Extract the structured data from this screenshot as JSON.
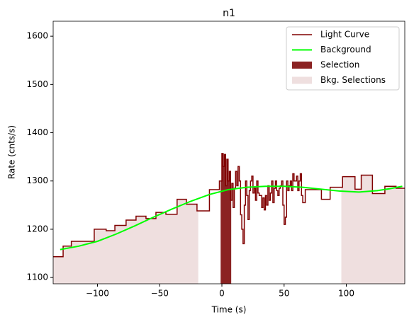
{
  "chart_data": {
    "type": "step",
    "title": "n1",
    "x_label": "Time (s)",
    "y_label": "Rate (cnts/s)",
    "xlim": [
      -135.6,
      147
    ],
    "ylim": [
      1087,
      1631
    ],
    "xticks": [
      {
        "value": -100,
        "label": "−100"
      },
      {
        "value": -50,
        "label": "−50"
      },
      0,
      50,
      100
    ],
    "yticks": [
      1100,
      1200,
      1300,
      1400,
      1500,
      1600
    ],
    "legend": "upper right",
    "series": [
      {
        "name": "Light Curve",
        "color": "#800000",
        "x": [
          -135.6,
          -127.6,
          -121,
          -102.6,
          -93,
          -86,
          -77,
          -69,
          -61,
          -53,
          -45,
          -36,
          -28.5,
          -20,
          -10,
          -2,
          0,
          1,
          2,
          3,
          4,
          5,
          6,
          7,
          8,
          9,
          10,
          11,
          12,
          13,
          14,
          15,
          16,
          17,
          18,
          19,
          20,
          21,
          22,
          23,
          24,
          25,
          26,
          27,
          28,
          29,
          30,
          32,
          33,
          34,
          35,
          36,
          37,
          38,
          39,
          40,
          41,
          42,
          43,
          44,
          45,
          46,
          47,
          48,
          49,
          50,
          51,
          52,
          53,
          54,
          55,
          56,
          57,
          58,
          60,
          61,
          62,
          63,
          64,
          65,
          67,
          80,
          87,
          97,
          107,
          112,
          121,
          131,
          140
        ],
        "values": [
          1143,
          1165,
          1175,
          1200,
          1197,
          1208,
          1219,
          1227,
          1222,
          1235,
          1231,
          1262,
          1252,
          1238,
          1282,
          1300,
          1357,
          1330,
          1355,
          1290,
          1345,
          1300,
          1320,
          1260,
          1295,
          1245,
          1285,
          1320,
          1290,
          1330,
          1300,
          1230,
          1200,
          1170,
          1250,
          1300,
          1270,
          1220,
          1280,
          1300,
          1310,
          1275,
          1285,
          1260,
          1300,
          1275,
          1270,
          1245,
          1265,
          1240,
          1270,
          1250,
          1290,
          1260,
          1275,
          1300,
          1255,
          1285,
          1300,
          1280,
          1270,
          1285,
          1290,
          1300,
          1250,
          1210,
          1225,
          1300,
          1280,
          1290,
          1300,
          1280,
          1315,
          1300,
          1310,
          1280,
          1300,
          1315,
          1270,
          1255,
          1282,
          1262,
          1287,
          1309,
          1283,
          1312,
          1274,
          1289,
          1285
        ]
      },
      {
        "name": "Background",
        "color": "#00ff00",
        "x": [
          -130,
          -115,
          -100,
          -85,
          -70,
          -55,
          -40,
          -25,
          -10,
          5,
          20,
          35,
          50,
          65,
          80,
          95,
          110,
          125,
          135,
          145
        ],
        "values": [
          1158,
          1165,
          1175,
          1190,
          1207,
          1225,
          1242,
          1258,
          1272,
          1282,
          1287,
          1289,
          1289,
          1287,
          1283,
          1279,
          1277,
          1280,
          1284,
          1289
        ]
      }
    ],
    "selection": {
      "name": "Selection",
      "color": "#8b2323",
      "range": [
        -1,
        7.5
      ]
    },
    "bkg_selections": {
      "name": "Bkg. Selections",
      "color": "#efdfdf",
      "ranges": [
        [
          -135.6,
          -19
        ],
        [
          96,
          147
        ]
      ]
    }
  }
}
